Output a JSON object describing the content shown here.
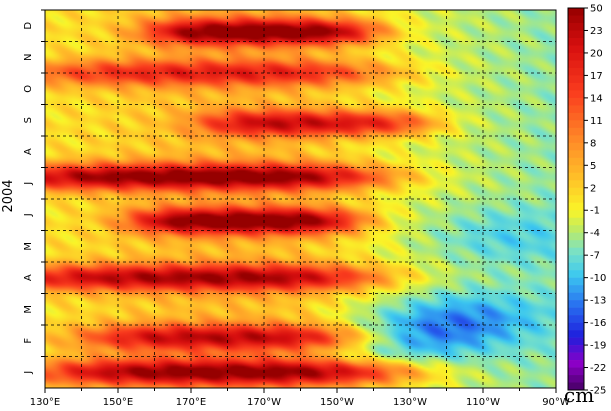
{
  "chart_data": {
    "type": "heatmap",
    "title": "",
    "xlabel": "",
    "ylabel": "2004",
    "x_tick_labels": [
      "130°E",
      "150°E",
      "170°E",
      "170°W",
      "150°W",
      "130°W",
      "110°W",
      "90°W"
    ],
    "x_range_lon_east": [
      130,
      270
    ],
    "y_tick_labels": [
      "J",
      "F",
      "M",
      "A",
      "M",
      "J",
      "J",
      "A",
      "S",
      "O",
      "N",
      "D"
    ],
    "y_range_months": [
      0,
      12
    ],
    "grid": true,
    "colorbar": {
      "unit": "cm",
      "tick_labels": [
        "50",
        "23",
        "20",
        "17",
        "14",
        "11",
        "8",
        "5",
        "2",
        "-1",
        "-4",
        "-7",
        "-10",
        "-13",
        "-16",
        "-19",
        "-22",
        "-25"
      ],
      "range": [
        -25,
        50
      ]
    },
    "bands": [
      {
        "month": 0.5,
        "lon_peak": 180,
        "anomaly_peak": 22
      },
      {
        "month": 1.6,
        "lon_peak": 180,
        "anomaly_peak": 18
      },
      {
        "month": 3.5,
        "lon_peak": 170,
        "anomaly_peak": 20
      },
      {
        "month": 5.3,
        "lon_peak": 185,
        "anomaly_peak": 24
      },
      {
        "month": 6.7,
        "lon_peak": 170,
        "anomaly_peak": 23
      },
      {
        "month": 8.4,
        "lon_peak": 205,
        "anomaly_peak": 18
      },
      {
        "month": 11.3,
        "lon_peak": 190,
        "anomaly_peak": 24
      },
      {
        "month": 10.0,
        "lon_peak": 175,
        "anomaly_peak": 14
      }
    ],
    "lows": [
      {
        "month": 2.2,
        "lon_peak": 245,
        "anomaly_peak": -9
      },
      {
        "month": 1.5,
        "lon_peak": 228,
        "anomaly_peak": -8
      },
      {
        "month": 4.8,
        "lon_peak": 255,
        "anomaly_peak": -5
      }
    ]
  }
}
